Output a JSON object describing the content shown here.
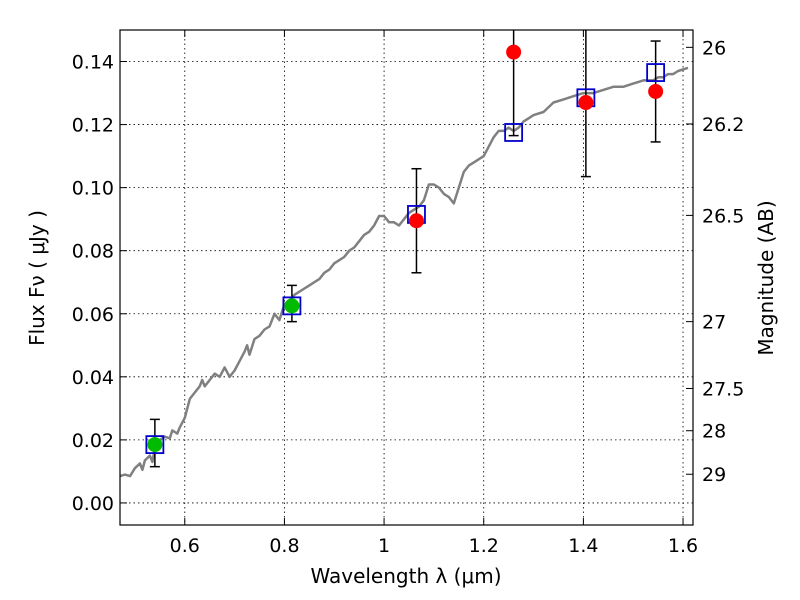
{
  "chart_data": {
    "type": "scatter",
    "xlabel": "Wavelength  λ (μm)",
    "ylabel": "Flux  Fν  ( μJy )",
    "ylabel_right": "Magnitude (AB)",
    "xlim": [
      0.47,
      1.62
    ],
    "ylim": [
      -0.007,
      0.15
    ],
    "x_ticks": [
      0.6,
      0.8,
      1.0,
      1.2,
      1.4,
      1.6
    ],
    "x_tick_labels": [
      "0.6",
      "0.8",
      "1",
      "1.2",
      "1.4",
      "1.6"
    ],
    "y_ticks": [
      0.0,
      0.02,
      0.04,
      0.06,
      0.08,
      0.1,
      0.12,
      0.14
    ],
    "y_tick_labels": [
      "0.00",
      "0.02",
      "0.04",
      "0.06",
      "0.08",
      "0.10",
      "0.12",
      "0.14"
    ],
    "right_ticks": [
      {
        "label": "26",
        "flux": 0.1445
      },
      {
        "label": "26.2",
        "flux": 0.1202
      },
      {
        "label": "26.5",
        "flux": 0.0912
      },
      {
        "label": "27",
        "flux": 0.0575
      },
      {
        "label": "27.5",
        "flux": 0.0363
      },
      {
        "label": "28",
        "flux": 0.0229
      },
      {
        "label": "29",
        "flux": 0.0091
      }
    ],
    "grid": true,
    "colors": {
      "model": "#808080",
      "model_points": "#0000cc",
      "red_points": "#ff0000",
      "green_points": "#00bb00",
      "error_bars": "#000000"
    },
    "series": [
      {
        "name": "model SED",
        "kind": "line",
        "points": [
          [
            0.47,
            0.0085
          ],
          [
            0.48,
            0.009
          ],
          [
            0.49,
            0.0085
          ],
          [
            0.5,
            0.011
          ],
          [
            0.51,
            0.0125
          ],
          [
            0.515,
            0.0105
          ],
          [
            0.52,
            0.0135
          ],
          [
            0.53,
            0.015
          ],
          [
            0.535,
            0.013
          ],
          [
            0.54,
            0.0175
          ],
          [
            0.55,
            0.02
          ],
          [
            0.56,
            0.021
          ],
          [
            0.57,
            0.0205
          ],
          [
            0.575,
            0.023
          ],
          [
            0.58,
            0.0225
          ],
          [
            0.585,
            0.022
          ],
          [
            0.59,
            0.024
          ],
          [
            0.6,
            0.027
          ],
          [
            0.61,
            0.033
          ],
          [
            0.62,
            0.035
          ],
          [
            0.63,
            0.037
          ],
          [
            0.635,
            0.039
          ],
          [
            0.64,
            0.037
          ],
          [
            0.65,
            0.039
          ],
          [
            0.66,
            0.041
          ],
          [
            0.67,
            0.04
          ],
          [
            0.68,
            0.043
          ],
          [
            0.69,
            0.04
          ],
          [
            0.7,
            0.042
          ],
          [
            0.71,
            0.045
          ],
          [
            0.72,
            0.048
          ],
          [
            0.725,
            0.05
          ],
          [
            0.73,
            0.047
          ],
          [
            0.74,
            0.052
          ],
          [
            0.75,
            0.053
          ],
          [
            0.76,
            0.055
          ],
          [
            0.77,
            0.056
          ],
          [
            0.78,
            0.06
          ],
          [
            0.79,
            0.058
          ],
          [
            0.8,
            0.063
          ],
          [
            0.81,
            0.064
          ],
          [
            0.82,
            0.066
          ],
          [
            0.83,
            0.067
          ],
          [
            0.84,
            0.068
          ],
          [
            0.85,
            0.069
          ],
          [
            0.86,
            0.07
          ],
          [
            0.87,
            0.071
          ],
          [
            0.88,
            0.073
          ],
          [
            0.89,
            0.074
          ],
          [
            0.9,
            0.076
          ],
          [
            0.91,
            0.077
          ],
          [
            0.92,
            0.078
          ],
          [
            0.93,
            0.08
          ],
          [
            0.94,
            0.081
          ],
          [
            0.95,
            0.083
          ],
          [
            0.96,
            0.085
          ],
          [
            0.97,
            0.086
          ],
          [
            0.98,
            0.088
          ],
          [
            0.99,
            0.091
          ],
          [
            1.0,
            0.091
          ],
          [
            1.01,
            0.089
          ],
          [
            1.02,
            0.089
          ],
          [
            1.03,
            0.088
          ],
          [
            1.04,
            0.09
          ],
          [
            1.05,
            0.092
          ],
          [
            1.06,
            0.093
          ],
          [
            1.07,
            0.094
          ],
          [
            1.08,
            0.096
          ],
          [
            1.09,
            0.101
          ],
          [
            1.1,
            0.101
          ],
          [
            1.11,
            0.1
          ],
          [
            1.12,
            0.098
          ],
          [
            1.13,
            0.097
          ],
          [
            1.14,
            0.095
          ],
          [
            1.15,
            0.1
          ],
          [
            1.16,
            0.105
          ],
          [
            1.17,
            0.107
          ],
          [
            1.18,
            0.108
          ],
          [
            1.19,
            0.109
          ],
          [
            1.2,
            0.11
          ],
          [
            1.21,
            0.113
          ],
          [
            1.22,
            0.116
          ],
          [
            1.23,
            0.118
          ],
          [
            1.24,
            0.118
          ],
          [
            1.25,
            0.119
          ],
          [
            1.26,
            0.118
          ],
          [
            1.27,
            0.119
          ],
          [
            1.28,
            0.121
          ],
          [
            1.29,
            0.122
          ],
          [
            1.3,
            0.123
          ],
          [
            1.32,
            0.124
          ],
          [
            1.34,
            0.127
          ],
          [
            1.36,
            0.128
          ],
          [
            1.38,
            0.129
          ],
          [
            1.4,
            0.13
          ],
          [
            1.42,
            0.13
          ],
          [
            1.44,
            0.131
          ],
          [
            1.46,
            0.132
          ],
          [
            1.48,
            0.132
          ],
          [
            1.5,
            0.133
          ],
          [
            1.52,
            0.134
          ],
          [
            1.54,
            0.134
          ],
          [
            1.55,
            0.135
          ],
          [
            1.56,
            0.135
          ],
          [
            1.57,
            0.136
          ],
          [
            1.58,
            0.136
          ],
          [
            1.59,
            0.137
          ],
          [
            1.6,
            0.1375
          ],
          [
            1.61,
            0.138
          ]
        ]
      },
      {
        "name": "model photometry",
        "kind": "open-square",
        "points": [
          [
            0.54,
            0.0185
          ],
          [
            0.815,
            0.0625
          ],
          [
            1.065,
            0.0915
          ],
          [
            1.26,
            0.1175
          ],
          [
            1.405,
            0.1285
          ],
          [
            1.545,
            0.1365
          ]
        ]
      },
      {
        "name": "detections (green)",
        "kind": "filled-circle",
        "points": [
          {
            "x": 0.54,
            "y": 0.0185,
            "err_low": 0.0115,
            "err_high": 0.0265
          },
          {
            "x": 0.815,
            "y": 0.0625,
            "err_low": 0.0575,
            "err_high": 0.069
          }
        ]
      },
      {
        "name": "detections (red)",
        "kind": "filled-circle",
        "points": [
          {
            "x": 1.065,
            "y": 0.0895,
            "err_low": 0.073,
            "err_high": 0.106
          },
          {
            "x": 1.26,
            "y": 0.143,
            "err_low": 0.1165,
            "err_high": 0.15
          },
          {
            "x": 1.405,
            "y": 0.127,
            "err_low": 0.1035,
            "err_high": 0.15
          },
          {
            "x": 1.545,
            "y": 0.1305,
            "err_low": 0.1145,
            "err_high": 0.1465
          }
        ]
      }
    ]
  }
}
